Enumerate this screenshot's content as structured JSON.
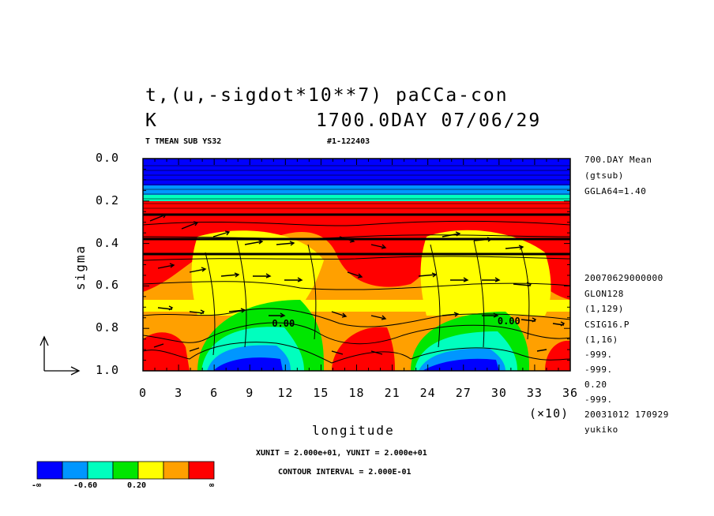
{
  "chart_data": {
    "type": "contour",
    "title_line1": "t,(u,-sigdot*10**7)  paCCa-con",
    "title_line2_left": "K",
    "title_line2_right": "1700.0DAY 07/06/29",
    "subtitle_left": "T TMEAN SUB YS32",
    "subtitle_right": "#1-122403",
    "xlabel": "longitude",
    "ylabel": "sigma",
    "x_scale_note": "(×10)",
    "x_ticks": [
      "0",
      "3",
      "6",
      "9",
      "12",
      "15",
      "18",
      "21",
      "24",
      "27",
      "30",
      "33",
      "36"
    ],
    "y_ticks": [
      "0.0",
      "0.2",
      "0.4",
      "0.6",
      "0.8",
      "1.0"
    ],
    "xlim": [
      0,
      360
    ],
    "ylim": [
      0.0,
      1.0
    ],
    "contour_labels": [
      {
        "text": "0.00",
        "x": 118,
        "y": 0.78
      },
      {
        "text": "0.00",
        "x": 308,
        "y": 0.77
      }
    ],
    "side_info": [
      "700.DAY Mean",
      "(gtsub)",
      "GGLA64=1.40",
      "20070629000000",
      "GLON128",
      "(1,129)",
      "CSIG16.P",
      "(1,16)",
      "-999.",
      "-999.",
      "0.20",
      "-999.",
      "20031012 170929",
      "yukiko"
    ],
    "footer_units": "XUNIT = 2.000e+01, YUNIT = 2.000e+01",
    "footer_interval": "CONTOUR INTERVAL = 2.000E-01",
    "colorbar": {
      "colors": [
        "#0000ff",
        "#0096ff",
        "#00ffbe",
        "#00e600",
        "#ffff00",
        "#ffa000",
        "#ff0000"
      ],
      "labels": [
        "-∞",
        "-0.60",
        "0.20",
        "∞"
      ]
    }
  }
}
